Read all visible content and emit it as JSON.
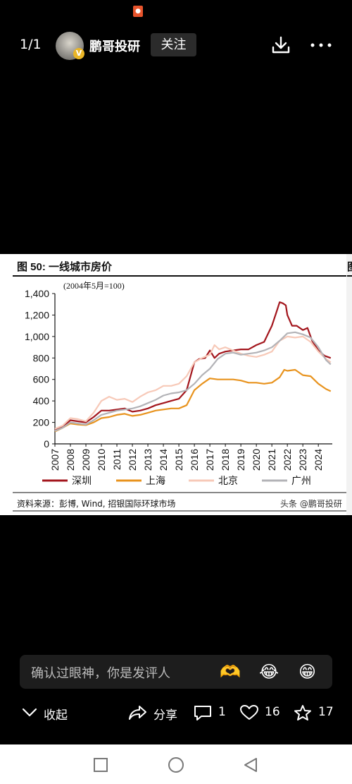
{
  "viewer": {
    "page_indicator": "1/1",
    "account_name": "鹏哥投研",
    "follow_label": "关注",
    "avatar_badge": "V"
  },
  "figure": {
    "title": "图 50: 一线城市房价",
    "unit_note": "(2004年5月=100)",
    "source": "资料来源：彭博, Wind, 招银国际环球市场",
    "watermark": "头条 @鹏哥投研"
  },
  "chart_data": {
    "type": "line",
    "ylim": [
      0,
      1400
    ],
    "yticks": [
      "0",
      "200",
      "400",
      "600",
      "800",
      "1,000",
      "1,200",
      "1,400"
    ],
    "xlim": [
      2007,
      2024.9
    ],
    "xticks": [
      "2007",
      "2008",
      "2009",
      "2010",
      "2011",
      "2012",
      "2013",
      "2014",
      "2015",
      "2016",
      "2017",
      "2018",
      "2019",
      "2020",
      "2021",
      "2022",
      "2023",
      "2024"
    ],
    "grid": false,
    "legend_position": "bottom",
    "series": [
      {
        "name": "深圳",
        "color": "#a3161d",
        "x": [
          2007,
          2007.5,
          2008,
          2008.5,
          2009,
          2009.5,
          2010,
          2010.5,
          2011,
          2011.5,
          2012,
          2012.5,
          2013,
          2013.5,
          2014,
          2014.5,
          2015,
          2015.5,
          2016,
          2016.3,
          2016.7,
          2017,
          2017.3,
          2017.6,
          2018,
          2018.5,
          2019,
          2019.5,
          2020,
          2020.5,
          2021,
          2021.3,
          2021.5,
          2021.7,
          2021.9,
          2022,
          2022.3,
          2022.6,
          2023,
          2023.3,
          2023.6,
          2024,
          2024.4,
          2024.8
        ],
        "values": [
          130,
          160,
          220,
          210,
          200,
          250,
          310,
          310,
          320,
          330,
          300,
          310,
          330,
          360,
          380,
          400,
          420,
          500,
          760,
          790,
          800,
          870,
          800,
          840,
          860,
          870,
          880,
          880,
          920,
          950,
          1100,
          1230,
          1320,
          1310,
          1290,
          1200,
          1100,
          1100,
          1060,
          1080,
          960,
          870,
          820,
          800
        ]
      },
      {
        "name": "上海",
        "color": "#e8931e",
        "x": [
          2007,
          2007.5,
          2008,
          2008.5,
          2009,
          2009.5,
          2010,
          2010.5,
          2011,
          2011.5,
          2012,
          2012.5,
          2013,
          2013.5,
          2014,
          2014.5,
          2015,
          2015.5,
          2016,
          2016.5,
          2017,
          2017.5,
          2018,
          2018.5,
          2019,
          2019.5,
          2020,
          2020.5,
          2021,
          2021.5,
          2021.8,
          2022,
          2022.5,
          2023,
          2023.5,
          2024,
          2024.5,
          2024.8
        ],
        "values": [
          115,
          150,
          190,
          180,
          175,
          200,
          240,
          250,
          270,
          280,
          260,
          270,
          290,
          310,
          320,
          330,
          330,
          360,
          500,
          560,
          610,
          600,
          600,
          600,
          590,
          570,
          570,
          560,
          570,
          620,
          690,
          680,
          690,
          640,
          630,
          560,
          510,
          490
        ]
      },
      {
        "name": "北京",
        "color": "#f7c9b8",
        "x": [
          2007,
          2007.5,
          2008,
          2008.5,
          2009,
          2009.5,
          2010,
          2010.5,
          2011,
          2011.5,
          2012,
          2012.5,
          2013,
          2013.5,
          2014,
          2014.5,
          2015,
          2015.5,
          2016,
          2016.5,
          2017,
          2017.3,
          2017.6,
          2018,
          2018.5,
          2019,
          2019.5,
          2020,
          2020.5,
          2021,
          2021.5,
          2022,
          2022.5,
          2023,
          2023.5,
          2024,
          2024.5,
          2024.8
        ],
        "values": [
          140,
          170,
          240,
          230,
          210,
          290,
          400,
          440,
          410,
          420,
          390,
          440,
          480,
          500,
          540,
          540,
          560,
          630,
          760,
          800,
          830,
          920,
          880,
          900,
          870,
          840,
          820,
          810,
          830,
          860,
          960,
          1000,
          990,
          1000,
          950,
          860,
          790,
          760
        ]
      },
      {
        "name": "广州",
        "color": "#b3b3b7",
        "x": [
          2007,
          2007.5,
          2008,
          2008.5,
          2009,
          2009.5,
          2010,
          2010.5,
          2011,
          2011.5,
          2012,
          2012.5,
          2013,
          2013.5,
          2014,
          2014.5,
          2015,
          2015.5,
          2016,
          2016.5,
          2017,
          2017.5,
          2018,
          2018.5,
          2019,
          2019.5,
          2020,
          2020.5,
          2021,
          2021.5,
          2022,
          2022.5,
          2023,
          2023.5,
          2024,
          2024.5,
          2024.8
        ],
        "values": [
          120,
          150,
          200,
          190,
          180,
          220,
          270,
          290,
          310,
          320,
          330,
          350,
          380,
          410,
          450,
          470,
          480,
          500,
          560,
          640,
          700,
          790,
          840,
          850,
          830,
          840,
          850,
          870,
          900,
          960,
          1030,
          1040,
          1020,
          990,
          900,
          780,
          740
        ]
      }
    ]
  },
  "comment": {
    "placeholder": "确认过眼神，你是发评人",
    "emojis": [
      "🫶",
      "😂",
      "😁"
    ]
  },
  "actions": {
    "collapse_label": "收起",
    "share_label": "分享",
    "comment_count": "1",
    "like_count": "16",
    "favorite_count": "17"
  }
}
